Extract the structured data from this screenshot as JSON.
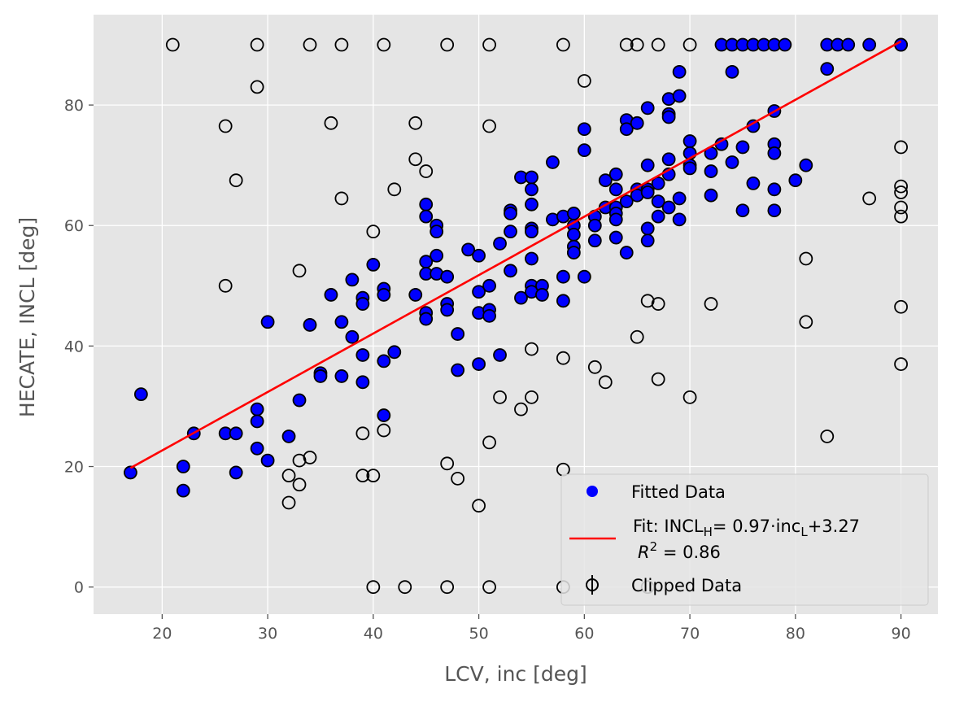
{
  "chart_data": {
    "type": "scatter",
    "title": "",
    "xlabel": "LCV, inc [deg]",
    "ylabel": "HECATE, INCL [deg]",
    "xlim": [
      13.5,
      93.5
    ],
    "ylim": [
      -4.5,
      95
    ],
    "xticks": [
      20,
      30,
      40,
      50,
      60,
      70,
      80,
      90
    ],
    "yticks": [
      0,
      20,
      40,
      60,
      80
    ],
    "grid": true,
    "legend_position": "bottom-right",
    "legend": {
      "fitted": "Fitted Data",
      "fit_prefix": "Fit: INCL",
      "fit_sub_h": "H",
      "fit_mid": "= 0.97·inc",
      "fit_sub_l": "L",
      "fit_suffix": "+3.27",
      "r2_prefix": "R",
      "r2_sup": "2",
      "r2_suffix": " =  0.86",
      "clipped": "Clipped Data"
    },
    "colors": {
      "background": "#e5e5e5",
      "grid": "#ffffff",
      "fitted": "#0000ff",
      "fit_line": "#ff0000",
      "marker_edge": "#000000"
    },
    "fit": {
      "slope": 0.97,
      "intercept": 3.27,
      "x_range": [
        17,
        90
      ]
    },
    "series": [
      {
        "name": "Fitted Data",
        "points": [
          [
            17,
            19
          ],
          [
            18,
            32
          ],
          [
            22,
            20
          ],
          [
            22,
            16
          ],
          [
            23,
            25.5
          ],
          [
            26,
            25.5
          ],
          [
            27,
            25.5
          ],
          [
            27,
            19
          ],
          [
            29,
            29.5
          ],
          [
            29,
            27.5
          ],
          [
            29,
            23
          ],
          [
            30,
            21
          ],
          [
            30,
            44
          ],
          [
            32,
            25
          ],
          [
            33,
            31
          ],
          [
            34,
            43.5
          ],
          [
            35,
            35.5
          ],
          [
            35,
            35
          ],
          [
            36,
            48.5
          ],
          [
            37,
            44
          ],
          [
            37,
            35
          ],
          [
            38,
            51
          ],
          [
            38,
            41.5
          ],
          [
            39,
            48
          ],
          [
            39,
            47
          ],
          [
            39,
            38.5
          ],
          [
            39,
            34
          ],
          [
            40,
            53.5
          ],
          [
            41,
            49.5
          ],
          [
            41,
            48.5
          ],
          [
            41,
            37.5
          ],
          [
            41,
            28.5
          ],
          [
            42,
            39
          ],
          [
            44,
            48.5
          ],
          [
            45,
            63.5
          ],
          [
            45,
            61.5
          ],
          [
            45,
            54
          ],
          [
            45,
            52
          ],
          [
            45,
            45.5
          ],
          [
            45,
            44.5
          ],
          [
            46,
            60
          ],
          [
            46,
            59
          ],
          [
            46,
            55
          ],
          [
            46,
            52
          ],
          [
            47,
            51.5
          ],
          [
            47,
            47
          ],
          [
            47,
            46
          ],
          [
            48,
            42
          ],
          [
            48,
            36
          ],
          [
            49,
            56
          ],
          [
            50,
            55
          ],
          [
            50,
            49
          ],
          [
            50,
            45.5
          ],
          [
            50,
            37
          ],
          [
            51,
            50
          ],
          [
            51,
            46
          ],
          [
            51,
            45
          ],
          [
            52,
            57
          ],
          [
            52,
            38.5
          ],
          [
            53,
            62.5
          ],
          [
            53,
            62
          ],
          [
            53,
            59
          ],
          [
            53,
            52.5
          ],
          [
            54,
            68
          ],
          [
            54,
            48
          ],
          [
            55,
            68
          ],
          [
            55,
            66
          ],
          [
            55,
            63.5
          ],
          [
            55,
            59.5
          ],
          [
            55,
            59
          ],
          [
            55,
            54.5
          ],
          [
            55,
            50
          ],
          [
            55,
            49
          ],
          [
            56,
            50
          ],
          [
            56,
            48.5
          ],
          [
            57,
            70.5
          ],
          [
            57,
            61
          ],
          [
            58,
            61.5
          ],
          [
            58,
            51.5
          ],
          [
            58,
            47.5
          ],
          [
            59,
            62
          ],
          [
            59,
            60
          ],
          [
            59,
            58.5
          ],
          [
            59,
            56.5
          ],
          [
            59,
            55.5
          ],
          [
            60,
            76
          ],
          [
            60,
            72.5
          ],
          [
            60,
            51.5
          ],
          [
            61,
            61.5
          ],
          [
            61,
            60
          ],
          [
            61,
            57.5
          ],
          [
            62,
            67.5
          ],
          [
            62,
            63
          ],
          [
            63,
            68.5
          ],
          [
            63,
            66
          ],
          [
            63,
            63
          ],
          [
            63,
            62
          ],
          [
            63,
            61
          ],
          [
            63,
            58
          ],
          [
            64,
            77.5
          ],
          [
            64,
            76
          ],
          [
            64,
            64
          ],
          [
            64,
            55.5
          ],
          [
            65,
            77
          ],
          [
            65,
            66
          ],
          [
            65,
            65
          ],
          [
            66,
            79.5
          ],
          [
            66,
            70
          ],
          [
            66,
            66
          ],
          [
            66,
            65.5
          ],
          [
            66,
            59.5
          ],
          [
            66,
            57.5
          ],
          [
            67,
            67
          ],
          [
            67,
            64
          ],
          [
            67,
            61.5
          ],
          [
            68,
            81
          ],
          [
            68,
            78.5
          ],
          [
            68,
            78
          ],
          [
            68,
            71
          ],
          [
            68,
            68.5
          ],
          [
            68,
            63
          ],
          [
            69,
            85.5
          ],
          [
            69,
            81.5
          ],
          [
            69,
            64.5
          ],
          [
            69,
            61
          ],
          [
            70,
            74
          ],
          [
            70,
            72
          ],
          [
            70,
            70
          ],
          [
            70,
            69.5
          ],
          [
            72,
            72
          ],
          [
            72,
            69
          ],
          [
            72,
            65
          ],
          [
            73,
            90
          ],
          [
            73,
            73.5
          ],
          [
            74,
            90
          ],
          [
            74,
            85.5
          ],
          [
            74,
            70.5
          ],
          [
            75,
            90
          ],
          [
            75,
            73
          ],
          [
            75,
            62.5
          ],
          [
            76,
            90
          ],
          [
            76,
            76.5
          ],
          [
            76,
            67
          ],
          [
            77,
            90
          ],
          [
            78,
            90
          ],
          [
            78,
            79
          ],
          [
            78,
            73.5
          ],
          [
            78,
            72
          ],
          [
            78,
            66
          ],
          [
            78,
            62.5
          ],
          [
            79,
            90
          ],
          [
            80,
            67.5
          ],
          [
            81,
            70
          ],
          [
            83,
            90
          ],
          [
            83,
            86
          ],
          [
            84,
            90
          ],
          [
            85,
            90
          ],
          [
            87,
            90
          ],
          [
            90,
            90
          ]
        ]
      },
      {
        "name": "Clipped Data",
        "points": [
          [
            21,
            90
          ],
          [
            26,
            76.5
          ],
          [
            26,
            50
          ],
          [
            27,
            67.5
          ],
          [
            29,
            90
          ],
          [
            29,
            83
          ],
          [
            32,
            18.5
          ],
          [
            32,
            14
          ],
          [
            33,
            52.5
          ],
          [
            33,
            21
          ],
          [
            33,
            17
          ],
          [
            34,
            90
          ],
          [
            34,
            21.5
          ],
          [
            36,
            77
          ],
          [
            37,
            90
          ],
          [
            37,
            64.5
          ],
          [
            39,
            25.5
          ],
          [
            39,
            18.5
          ],
          [
            40,
            59
          ],
          [
            40,
            18.5
          ],
          [
            40,
            0
          ],
          [
            41,
            90
          ],
          [
            41,
            26
          ],
          [
            42,
            66
          ],
          [
            43,
            0
          ],
          [
            44,
            77
          ],
          [
            44,
            71
          ],
          [
            45,
            69
          ],
          [
            47,
            90
          ],
          [
            47,
            20.5
          ],
          [
            47,
            0
          ],
          [
            48,
            18
          ],
          [
            50,
            13.5
          ],
          [
            51,
            90
          ],
          [
            51,
            76.5
          ],
          [
            51,
            24
          ],
          [
            51,
            0
          ],
          [
            52,
            31.5
          ],
          [
            54,
            29.5
          ],
          [
            55,
            39.5
          ],
          [
            55,
            31.5
          ],
          [
            58,
            90
          ],
          [
            58,
            38
          ],
          [
            58,
            19.5
          ],
          [
            58,
            0
          ],
          [
            60,
            84
          ],
          [
            61,
            36.5
          ],
          [
            62,
            34
          ],
          [
            64,
            90
          ],
          [
            65,
            90
          ],
          [
            65,
            41.5
          ],
          [
            66,
            47.5
          ],
          [
            66,
            0
          ],
          [
            67,
            90
          ],
          [
            67,
            47
          ],
          [
            67,
            34.5
          ],
          [
            70,
            90
          ],
          [
            70,
            31.5
          ],
          [
            72,
            47
          ],
          [
            81,
            54.5
          ],
          [
            81,
            44
          ],
          [
            83,
            25
          ],
          [
            87,
            64.5
          ],
          [
            90,
            90
          ],
          [
            90,
            73
          ],
          [
            90,
            66.5
          ],
          [
            90,
            65.5
          ],
          [
            90,
            63
          ],
          [
            90,
            61.5
          ],
          [
            90,
            46.5
          ],
          [
            90,
            37
          ]
        ]
      }
    ]
  }
}
